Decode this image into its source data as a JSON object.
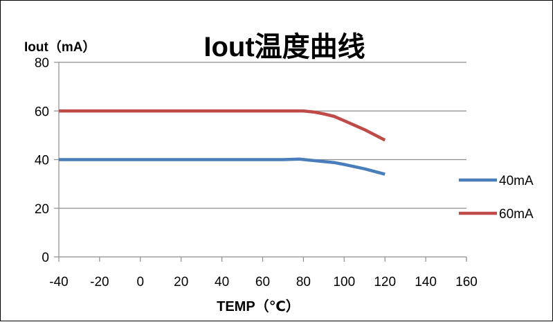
{
  "chart_data": {
    "type": "line",
    "title": "Iout温度曲线",
    "xlabel": "TEMP（℃）",
    "ylabel": "Iout（mA）",
    "xlim": [
      -40,
      160
    ],
    "ylim": [
      0,
      80
    ],
    "x_ticks": [
      -40,
      -20,
      0,
      20,
      40,
      60,
      80,
      100,
      120,
      140,
      160
    ],
    "y_ticks": [
      0,
      20,
      40,
      60,
      80
    ],
    "grid": "horizontal",
    "legend": "right",
    "series": [
      {
        "name": "40mA",
        "color": "#4a7ebb",
        "x": [
          -40,
          -20,
          0,
          20,
          40,
          60,
          70,
          78,
          85,
          95,
          100,
          110,
          120
        ],
        "y": [
          40,
          40,
          40,
          40,
          40,
          40,
          40,
          40.2,
          39.6,
          38.8,
          38,
          36.2,
          34
        ]
      },
      {
        "name": "60mA",
        "color": "#be4b48",
        "x": [
          -40,
          -20,
          0,
          20,
          40,
          60,
          70,
          80,
          85,
          90,
          95,
          100,
          110,
          120
        ],
        "y": [
          60,
          60,
          60,
          60,
          60,
          60,
          60,
          60,
          59.6,
          58.8,
          57.8,
          56,
          52.3,
          48
        ]
      }
    ]
  }
}
